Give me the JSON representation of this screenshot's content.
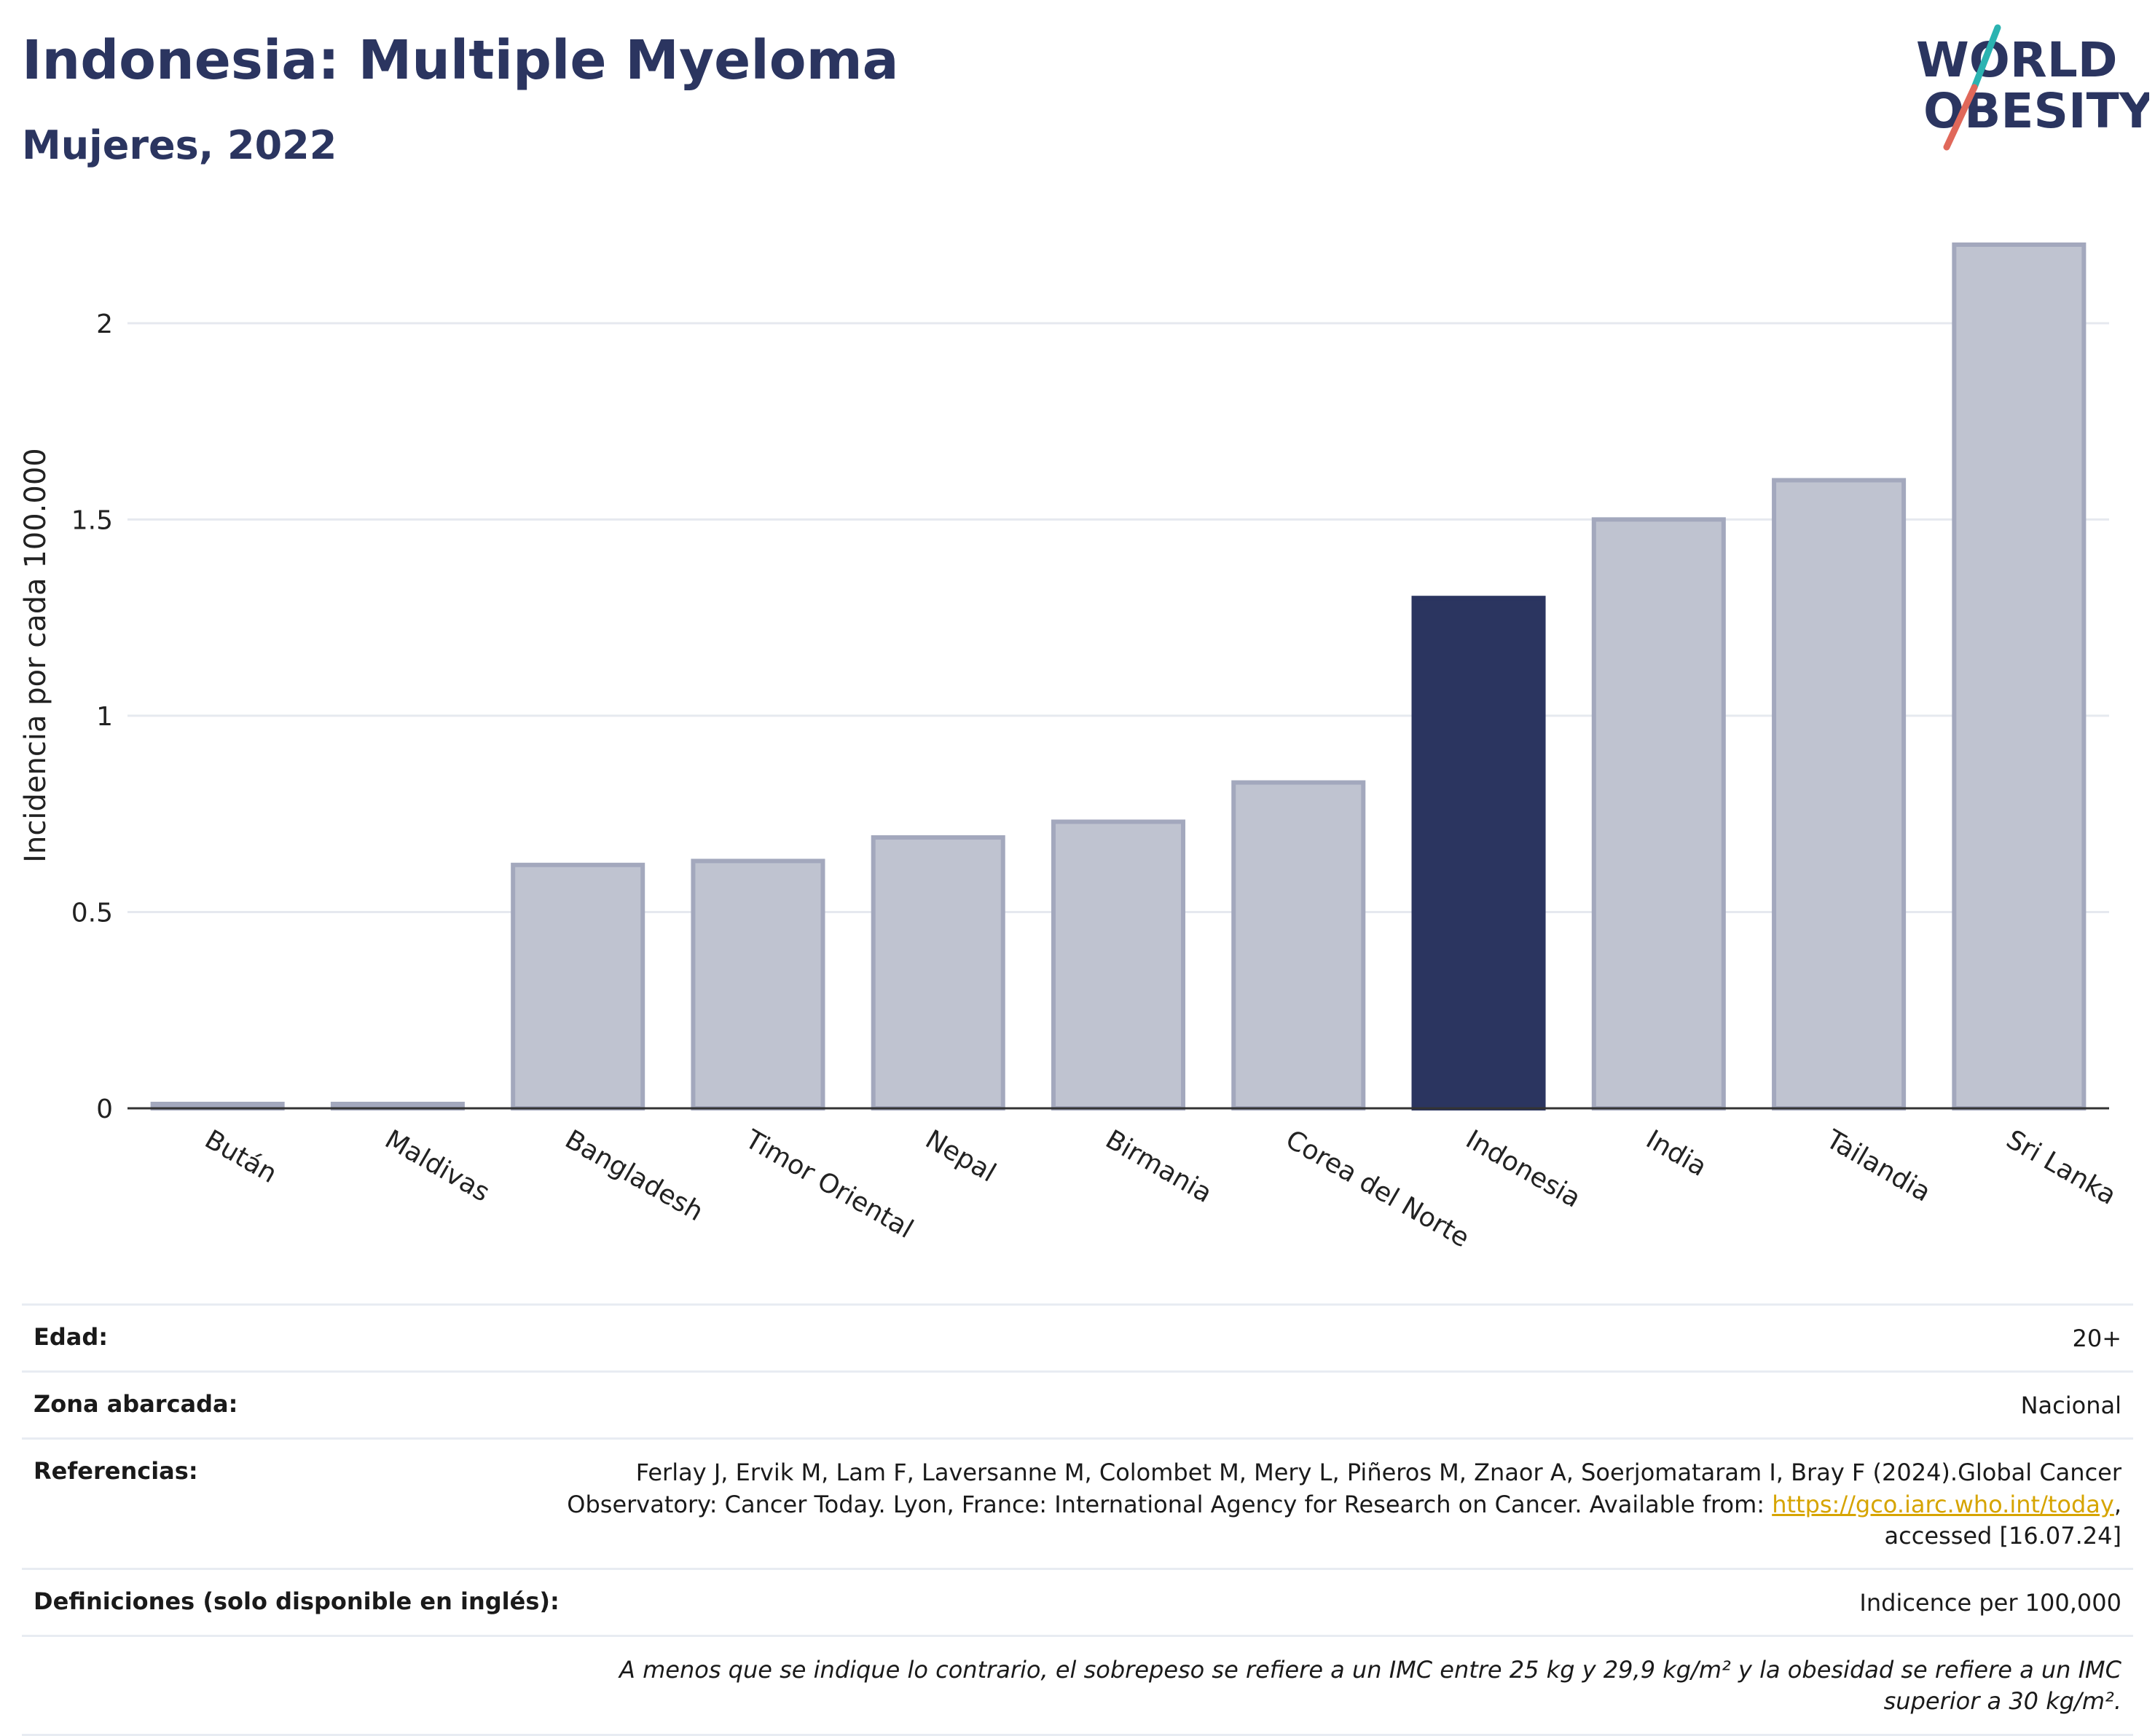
{
  "header": {
    "title": "Indonesia: Multiple Myeloma",
    "subtitle": "Mujeres, 2022"
  },
  "logo": {
    "line1": "WORLD",
    "line2": "OBESITY",
    "colors": {
      "text": "#2b3560",
      "slash_teal": "#2bb3b1",
      "slash_red": "#e0685a"
    }
  },
  "chart_data": {
    "type": "bar",
    "categories": [
      "Bután",
      "Maldivas",
      "Bangladesh",
      "Timor Oriental",
      "Nepal",
      "Birmania",
      "Corea del Norte",
      "Indonesia",
      "India",
      "Tailandia",
      "Sri Lanka"
    ],
    "values": [
      0,
      0,
      0.62,
      0.63,
      0.69,
      0.73,
      0.83,
      1.3,
      1.5,
      1.6,
      2.2
    ],
    "highlight": "Indonesia",
    "title": "",
    "xlabel": "",
    "ylabel": "Incidencia por cada 100.000",
    "ylim": [
      0,
      2.2
    ],
    "yticks": [
      0,
      0.5,
      1,
      1.5,
      2
    ],
    "ytick_labels": [
      "0",
      "0.5",
      "1",
      "1.5",
      "2"
    ],
    "grid": true,
    "colors": {
      "bar": "#bfc3d0",
      "bar_border": "#a3a8bd",
      "highlight": "#2b3560"
    }
  },
  "info": {
    "age_label": "Edad:",
    "age_value": "20+",
    "area_label": "Zona abarcada:",
    "area_value": "Nacional",
    "refs_label": "Referencias:",
    "refs_text_1": "Ferlay J, Ervik M, Lam F, Laversanne M, Colombet M, Mery L, Piñeros M, Znaor A, Soerjomataram I, Bray F (2024).Global Cancer Observatory: Cancer Today. Lyon, France: International Agency for Research on Cancer. Available from: ",
    "refs_link": "https://gco.iarc.who.int/today",
    "refs_text_2": ", accessed [16.07.24]",
    "defs_label": "Definiciones (solo disponible en inglés):",
    "defs_value": "Indicence per 100,000",
    "note": "A menos que se indique lo contrario, el sobrepeso se refiere a un IMC entre 25 kg y 29,9 kg/m² y la obesidad se refiere a un IMC superior a 30 kg/m²."
  }
}
